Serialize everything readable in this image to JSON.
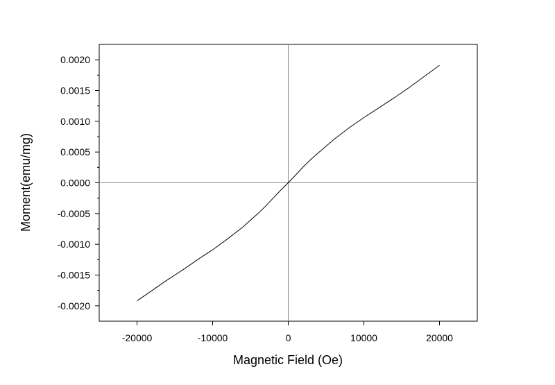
{
  "chart_data": {
    "type": "line",
    "title": "",
    "xlabel": "Magnetic Field (Oe)",
    "ylabel": "Moment(emu/mg)",
    "xlim": [
      -25000,
      25000
    ],
    "ylim": [
      -0.00225,
      0.00225
    ],
    "x_ticks": [
      -20000,
      -10000,
      0,
      10000,
      20000
    ],
    "x_tick_labels": [
      "-20000",
      "-10000",
      "0",
      "10000",
      "20000"
    ],
    "y_ticks": [
      -0.002,
      -0.0015,
      -0.001,
      -0.0005,
      0.0,
      0.0005,
      0.001,
      0.0015,
      0.002
    ],
    "y_tick_labels": [
      "-0.0020",
      "-0.0015",
      "-0.0010",
      "-0.0005",
      "0.0000",
      "0.0005",
      "0.0010",
      "0.0015",
      "0.0020"
    ],
    "grid": false,
    "zero_lines": true,
    "series": [
      {
        "color": "#000000",
        "x": [
          -20000,
          -18000,
          -16000,
          -14000,
          -12000,
          -10000,
          -8000,
          -6000,
          -4000,
          -3000,
          -2000,
          -1000,
          0,
          1000,
          2000,
          3000,
          4000,
          6000,
          8000,
          10000,
          12000,
          14000,
          16000,
          18000,
          20000
        ],
        "y": [
          -0.00192,
          -0.00175,
          -0.00158,
          -0.00142,
          -0.00125,
          -0.00109,
          -0.00091,
          -0.00072,
          -0.0005,
          -0.00038,
          -0.00025,
          -0.00012,
          0.0,
          0.00013,
          0.00026,
          0.00038,
          0.00049,
          0.0007,
          0.00089,
          0.00106,
          0.00122,
          0.00138,
          0.00155,
          0.00173,
          0.00191
        ]
      }
    ]
  }
}
